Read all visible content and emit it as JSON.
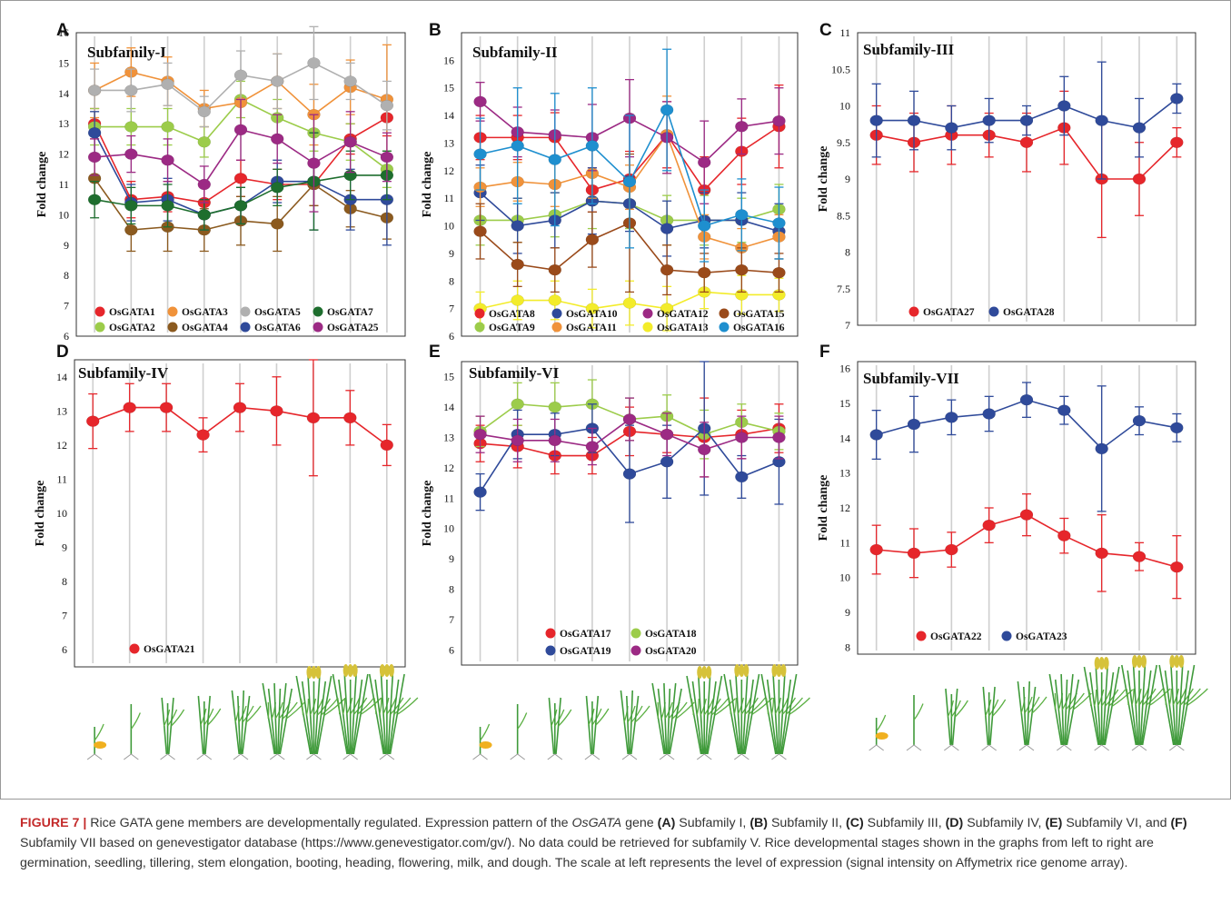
{
  "colors": {
    "OsGATA1": "#e6262b",
    "OsGATA2": "#9ccc4a",
    "OsGATA3": "#f0923a",
    "OsGATA4": "#8b5a1f",
    "OsGATA5": "#b0b0b0",
    "OsGATA6": "#2f4a9a",
    "OsGATA7": "#1e6e2e",
    "OsGATA25": "#9c2a84",
    "OsGATA8": "#e6262b",
    "OsGATA9": "#9ccc4a",
    "OsGATA10": "#2f4a9a",
    "OsGATA11": "#f0923a",
    "OsGATA12": "#9c2a84",
    "OsGATA13": "#f3ec2a",
    "OsGATA15": "#9a4a1a",
    "OsGATA16": "#1e8fcf",
    "OsGATA17": "#e6262b",
    "OsGATA18": "#9ccc4a",
    "OsGATA19": "#2f4a9a",
    "OsGATA20": "#9c2a84",
    "OsGATA21": "#e6262b",
    "OsGATA22": "#e6262b",
    "OsGATA23": "#2f4a9a",
    "OsGATA27": "#e6262b",
    "OsGATA28": "#2f4a9a",
    "caption_label": "#c42b2b"
  },
  "chart_data": [
    {
      "panel": "A",
      "type": "line",
      "title": "Subfamily-I",
      "ylabel": "Fold change",
      "ylim": [
        6,
        16
      ],
      "yticks": [
        6,
        7,
        8,
        9,
        10,
        11,
        12,
        13,
        14,
        15,
        16
      ],
      "legend": [
        [
          "OsGATA1",
          "OsGATA3",
          "OsGATA5",
          "OsGATA7"
        ],
        [
          "OsGATA2",
          "OsGATA4",
          "OsGATA6",
          "OsGATA25"
        ]
      ],
      "series": [
        {
          "name": "OsGATA1",
          "values": [
            13.0,
            10.5,
            10.6,
            10.4,
            11.2,
            11.0,
            11.0,
            12.5,
            13.2
          ],
          "err": [
            0.5,
            0.6,
            0.5,
            0.5,
            0.6,
            0.5,
            0.7,
            0.5,
            0.6
          ]
        },
        {
          "name": "OsGATA2",
          "values": [
            12.9,
            12.9,
            12.9,
            12.4,
            13.8,
            13.2,
            12.7,
            12.4,
            11.5
          ],
          "err": [
            0.6,
            0.6,
            0.6,
            0.5,
            0.6,
            0.6,
            0.6,
            0.6,
            0.6
          ]
        },
        {
          "name": "OsGATA3",
          "values": [
            14.1,
            14.7,
            14.4,
            13.5,
            13.7,
            14.4,
            13.3,
            14.2,
            13.8
          ],
          "err": [
            0.9,
            0.8,
            0.8,
            0.6,
            1.0,
            0.9,
            1.0,
            0.9,
            1.8
          ]
        },
        {
          "name": "OsGATA4",
          "values": [
            11.2,
            9.5,
            9.6,
            9.5,
            9.8,
            9.7,
            11.0,
            10.2,
            9.9
          ],
          "err": [
            0.7,
            0.7,
            0.8,
            0.7,
            0.8,
            0.9,
            0.7,
            0.6,
            0.7
          ]
        },
        {
          "name": "OsGATA5",
          "values": [
            14.1,
            14.1,
            14.3,
            13.4,
            14.6,
            14.4,
            15.0,
            14.4,
            13.6
          ],
          "err": [
            0.7,
            0.7,
            0.7,
            0.5,
            0.8,
            0.9,
            1.2,
            0.6,
            0.8
          ]
        },
        {
          "name": "OsGATA6",
          "values": [
            12.7,
            10.4,
            10.5,
            10.0,
            10.3,
            11.1,
            11.1,
            10.5,
            10.5
          ],
          "err": [
            0.7,
            0.6,
            0.7,
            0.5,
            0.6,
            0.7,
            1.6,
            1.0,
            1.5
          ]
        },
        {
          "name": "OsGATA7",
          "values": [
            10.5,
            10.3,
            10.3,
            10.0,
            10.3,
            10.9,
            11.1,
            11.3,
            11.3
          ],
          "err": [
            0.6,
            0.6,
            0.7,
            0.5,
            0.6,
            0.6,
            1.6,
            0.8,
            0.8
          ]
        },
        {
          "name": "OsGATA25",
          "values": [
            11.9,
            12.0,
            11.8,
            11.0,
            12.8,
            12.5,
            11.7,
            12.4,
            11.9
          ],
          "err": [
            0.6,
            0.6,
            0.7,
            0.6,
            1.0,
            0.8,
            1.6,
            1.0,
            0.8
          ]
        }
      ]
    },
    {
      "panel": "B",
      "type": "line",
      "title": "Subfamily-II",
      "ylabel": "Fold change",
      "ylim": [
        6,
        17
      ],
      "yticks": [
        6,
        7,
        8,
        9,
        10,
        11,
        12,
        13,
        14,
        15,
        16
      ],
      "legend": [
        [
          "OsGATA8",
          "OsGATA10",
          "OsGATA12",
          "OsGATA15"
        ],
        [
          "OsGATA9",
          "OsGATA11",
          "OsGATA13",
          "OsGATA16"
        ]
      ],
      "series": [
        {
          "name": "OsGATA8",
          "values": [
            13.2,
            13.2,
            13.2,
            11.3,
            11.7,
            13.3,
            11.3,
            12.7,
            13.6
          ],
          "err": [
            0.8,
            0.8,
            0.9,
            0.8,
            1.0,
            1.2,
            1.2,
            1.2,
            1.5
          ]
        },
        {
          "name": "OsGATA9",
          "values": [
            10.2,
            10.2,
            10.4,
            10.9,
            10.8,
            10.2,
            10.2,
            10.2,
            10.6
          ],
          "err": [
            0.9,
            0.8,
            0.8,
            1.0,
            0.9,
            0.9,
            0.9,
            0.8,
            0.9
          ]
        },
        {
          "name": "OsGATA10",
          "values": [
            11.2,
            10.0,
            10.2,
            10.9,
            10.8,
            9.9,
            10.2,
            10.2,
            9.8
          ],
          "err": [
            1.0,
            1.0,
            1.0,
            1.2,
            1.0,
            1.0,
            1.0,
            1.0,
            1.0
          ]
        },
        {
          "name": "OsGATA11",
          "values": [
            11.4,
            11.6,
            11.5,
            11.9,
            11.4,
            13.3,
            9.6,
            9.2,
            9.6
          ],
          "err": [
            0.7,
            0.7,
            0.8,
            0.9,
            0.8,
            1.4,
            0.8,
            0.7,
            0.8
          ]
        },
        {
          "name": "OsGATA12",
          "values": [
            14.5,
            13.4,
            13.3,
            13.2,
            13.9,
            13.2,
            12.3,
            13.6,
            13.8
          ],
          "err": [
            0.7,
            0.9,
            0.9,
            1.2,
            1.4,
            1.3,
            1.5,
            1.0,
            1.2
          ]
        },
        {
          "name": "OsGATA13",
          "values": [
            7.0,
            7.3,
            7.3,
            7.0,
            7.2,
            7.0,
            7.6,
            7.5,
            7.5
          ],
          "err": [
            0.6,
            0.7,
            0.7,
            0.7,
            0.8,
            0.8,
            0.6,
            0.7,
            0.6
          ]
        },
        {
          "name": "OsGATA15",
          "values": [
            9.8,
            8.6,
            8.4,
            9.5,
            10.1,
            8.4,
            8.3,
            8.4,
            8.3
          ],
          "err": [
            1.0,
            0.8,
            0.8,
            1.0,
            2.5,
            0.9,
            0.7,
            0.8,
            0.7
          ]
        },
        {
          "name": "OsGATA16",
          "values": [
            12.6,
            12.9,
            12.4,
            12.9,
            11.6,
            14.2,
            10.0,
            10.4,
            10.1
          ],
          "err": [
            1.3,
            2.1,
            2.4,
            2.1,
            2.4,
            2.2,
            1.3,
            1.3,
            1.3
          ]
        }
      ]
    },
    {
      "panel": "C",
      "type": "line",
      "title": "Subfamily-III",
      "ylabel": "Fold change",
      "ylim": [
        7,
        11
      ],
      "yticks": [
        7,
        7.5,
        8,
        8.5,
        9,
        9.5,
        10,
        10.5,
        11
      ],
      "legend": [
        [
          "OsGATA27",
          "OsGATA28"
        ]
      ],
      "series": [
        {
          "name": "OsGATA27",
          "values": [
            9.6,
            9.5,
            9.6,
            9.6,
            9.5,
            9.7,
            9.0,
            9.0,
            9.5
          ],
          "err": [
            0.4,
            0.4,
            0.4,
            0.3,
            0.4,
            0.5,
            0.8,
            0.5,
            0.2
          ]
        },
        {
          "name": "OsGATA28",
          "values": [
            9.8,
            9.8,
            9.7,
            9.8,
            9.8,
            10.0,
            9.8,
            9.7,
            10.1
          ],
          "err": [
            0.5,
            0.4,
            0.3,
            0.3,
            0.2,
            0.4,
            0.8,
            0.4,
            0.2
          ]
        }
      ]
    },
    {
      "panel": "D",
      "type": "line",
      "title": "Subfamily-IV",
      "ylabel": "Fold change",
      "ylim": [
        5.5,
        14.5
      ],
      "yticks": [
        6,
        7,
        8,
        9,
        10,
        11,
        12,
        13,
        14
      ],
      "legend": [
        [
          "OsGATA21"
        ]
      ],
      "series": [
        {
          "name": "OsGATA21",
          "values": [
            12.7,
            13.1,
            13.1,
            12.3,
            13.1,
            13.0,
            12.8,
            12.8,
            12.0
          ],
          "err": [
            0.8,
            0.7,
            0.7,
            0.5,
            0.7,
            1.0,
            1.7,
            0.8,
            0.6
          ]
        }
      ]
    },
    {
      "panel": "E",
      "type": "line",
      "title": "Subfamily-VI",
      "ylabel": "Fold change",
      "ylim": [
        5.5,
        15.5
      ],
      "yticks": [
        6,
        7,
        8,
        9,
        10,
        11,
        12,
        13,
        14,
        15
      ],
      "legend": [
        [
          "OsGATA17",
          "OsGATA18"
        ],
        [
          "OsGATA19",
          "OsGATA20"
        ]
      ],
      "series": [
        {
          "name": "OsGATA17",
          "values": [
            12.8,
            12.7,
            12.4,
            12.4,
            13.2,
            13.1,
            13.0,
            13.1,
            13.3
          ],
          "err": [
            0.6,
            0.7,
            0.6,
            0.6,
            0.8,
            0.6,
            1.3,
            0.8,
            0.8
          ]
        },
        {
          "name": "OsGATA18",
          "values": [
            13.2,
            14.1,
            14.0,
            14.1,
            13.6,
            13.7,
            13.1,
            13.5,
            13.2
          ],
          "err": [
            0.5,
            0.7,
            0.8,
            0.8,
            0.7,
            0.7,
            0.8,
            0.6,
            0.6
          ]
        },
        {
          "name": "OsGATA19",
          "values": [
            11.2,
            13.1,
            13.1,
            13.3,
            11.8,
            12.2,
            13.3,
            11.7,
            12.2
          ],
          "err": [
            0.6,
            0.8,
            0.7,
            0.8,
            1.6,
            1.2,
            2.2,
            0.7,
            1.4
          ]
        },
        {
          "name": "OsGATA20",
          "values": [
            13.1,
            12.9,
            12.9,
            12.7,
            13.6,
            13.1,
            12.6,
            13.0,
            13.0
          ],
          "err": [
            0.6,
            0.7,
            0.7,
            0.6,
            0.7,
            0.7,
            0.9,
            0.7,
            0.7
          ]
        }
      ]
    },
    {
      "panel": "F",
      "type": "line",
      "title": "Subfamily-VII",
      "ylabel": "Fold change",
      "ylim": [
        7.8,
        16.2
      ],
      "yticks": [
        8,
        9,
        10,
        11,
        12,
        13,
        14,
        15,
        16
      ],
      "legend": [
        [
          "OsGATA22",
          "OsGATA23"
        ]
      ],
      "series": [
        {
          "name": "OsGATA22",
          "values": [
            10.8,
            10.7,
            10.8,
            11.5,
            11.8,
            11.2,
            10.7,
            10.6,
            10.3
          ],
          "err": [
            0.7,
            0.7,
            0.5,
            0.5,
            0.6,
            0.5,
            1.1,
            0.4,
            0.9
          ]
        },
        {
          "name": "OsGATA23",
          "values": [
            14.1,
            14.4,
            14.6,
            14.7,
            15.1,
            14.8,
            13.7,
            14.5,
            14.3
          ],
          "err": [
            0.7,
            0.8,
            0.5,
            0.5,
            0.5,
            0.4,
            1.8,
            0.4,
            0.4
          ]
        }
      ]
    }
  ],
  "caption": {
    "label": "FIGURE 7 |",
    "parts": [
      {
        "t": " Rice GATA gene members are developmentally regulated. Expression pattern of the ",
        "s": "n"
      },
      {
        "t": "OsGATA",
        "s": "i"
      },
      {
        "t": " gene ",
        "s": "n"
      },
      {
        "t": "(A)",
        "s": "b"
      },
      {
        "t": " Subfamily I, ",
        "s": "n"
      },
      {
        "t": "(B)",
        "s": "b"
      },
      {
        "t": " Subfamily II, ",
        "s": "n"
      },
      {
        "t": "(C)",
        "s": "b"
      },
      {
        "t": " Subfamily III, ",
        "s": "n"
      },
      {
        "t": "(D)",
        "s": "b"
      },
      {
        "t": " Subfamily IV, ",
        "s": "n"
      },
      {
        "t": "(E)",
        "s": "b"
      },
      {
        "t": " Subfamily VI, and ",
        "s": "n"
      },
      {
        "t": "(F)",
        "s": "b"
      },
      {
        "t": " Subfamily VII based on genevestigator database (https://www.genevestigator.com/gv/). No data could be retrieved for subfamily V. Rice developmental stages shown in the graphs from left to right are germination, seedling, tillering, stem elongation, booting, heading, flowering, milk, and dough. The scale at left represents the level of expression (signal intensity on Affymetrix rice genome array).",
        "s": "n"
      }
    ]
  }
}
